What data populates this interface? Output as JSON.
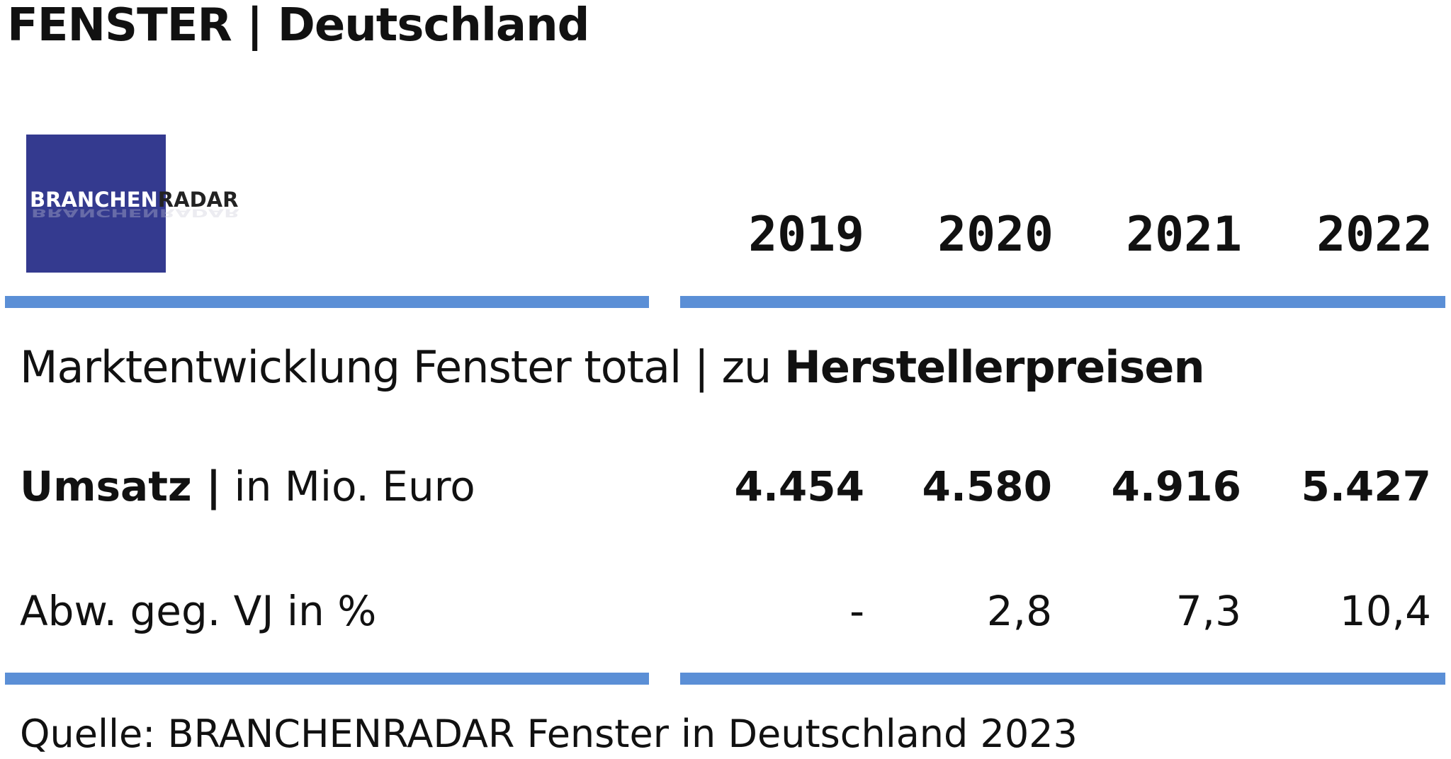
{
  "title": "FENSTER | Deutschland",
  "logo": {
    "part1": "BRANCHEN",
    "part2": "RADAR",
    "color": "#343a8f"
  },
  "subtitle": {
    "regular": "Marktentwicklung Fenster total | zu ",
    "bold": "Herstellerpreisen"
  },
  "chart_data": {
    "type": "table",
    "columns": [
      "2019",
      "2020",
      "2021",
      "2022"
    ],
    "rows": [
      {
        "label_bold": "Umsatz |",
        "label_regular": " in Mio. Euro",
        "values": [
          "4.454",
          "4.580",
          "4.916",
          "5.427"
        ]
      },
      {
        "label_bold": "",
        "label_regular": "Abw. geg. VJ in %",
        "values": [
          "-",
          "2,8",
          "7,3",
          "10,4"
        ]
      }
    ],
    "accent_color": "#5b8fd6"
  },
  "source": "Quelle: BRANCHENRADAR Fenster in Deutschland 2023"
}
